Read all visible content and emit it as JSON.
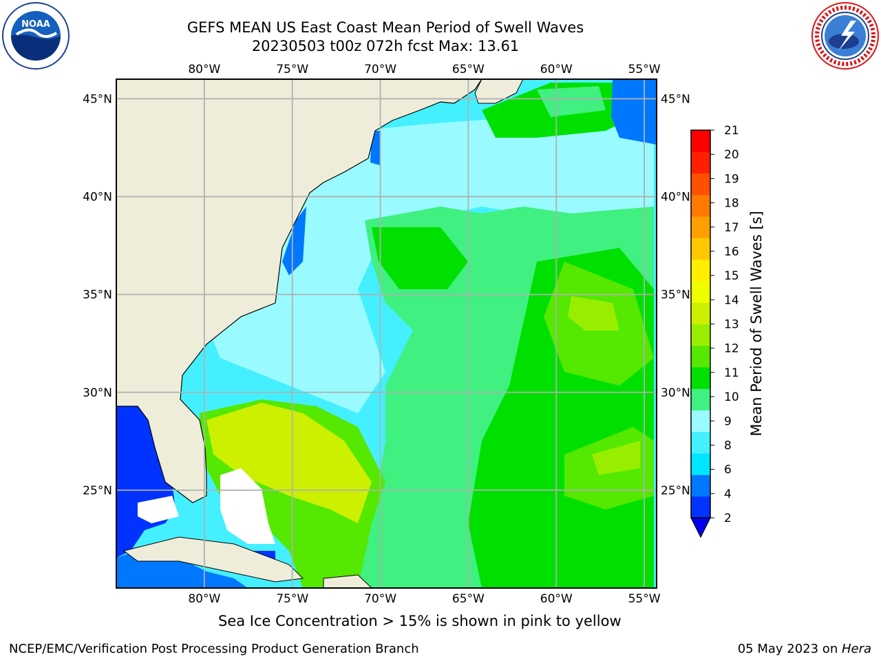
{
  "header": {
    "title_line1": "GEFS MEAN US East Coast Mean Period of Swell Waves",
    "title_line2": "20230503 t00z 072h fcst   Max: 13.61"
  },
  "logos": {
    "left": "noaa-logo",
    "left_text": "NOAA",
    "right": "nws-logo"
  },
  "map": {
    "lon_labels": [
      "80°W",
      "75°W",
      "70°W",
      "65°W",
      "60°W",
      "55°W"
    ],
    "lat_labels": [
      "45°N",
      "40°N",
      "35°N",
      "30°N",
      "25°N"
    ],
    "lon_range": [
      -85,
      -54.3
    ],
    "lat_range": [
      20,
      46
    ],
    "grid": true
  },
  "colorbar": {
    "label": "Mean Period of Swell Waves [s]",
    "ticks": [
      "21",
      "20",
      "19",
      "18",
      "17",
      "16",
      "15",
      "14",
      "13",
      "12",
      "11",
      "10",
      "9",
      "8",
      "6",
      "4",
      "2"
    ],
    "colors": [
      "#0033ff",
      "#0077ff",
      "#00e5ff",
      "#44f0ff",
      "#99fbff",
      "#40f080",
      "#00e000",
      "#55e800",
      "#99ee00",
      "#ccf000",
      "#eeff00",
      "#ffee00",
      "#ffc800",
      "#ffa000",
      "#ff7a00",
      "#ff5000",
      "#ff2000",
      "#ff0000"
    ],
    "land_color": "#eeedda"
  },
  "notes": {
    "ice": "Sea Ice Concentration > 15% is shown in pink to yellow"
  },
  "footer": {
    "left": "NCEP/EMC/Verification Post Processing Product Generation Branch",
    "date": "05 May 2023 on ",
    "machine": "Hera"
  }
}
